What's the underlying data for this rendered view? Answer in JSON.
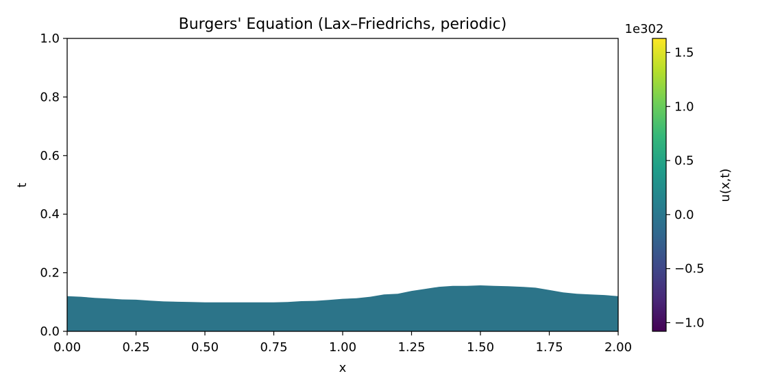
{
  "chart_data": {
    "type": "heatmap",
    "title": "Burgers' Equation (Lax–Friedrichs, periodic)",
    "xlabel": "x",
    "ylabel": "t",
    "xlim": [
      0.0,
      2.0
    ],
    "ylim": [
      0.0,
      1.0
    ],
    "x_ticks": [
      "0.00",
      "0.25",
      "0.50",
      "0.75",
      "1.00",
      "1.25",
      "1.50",
      "1.75",
      "2.00"
    ],
    "y_ticks": [
      "0.0",
      "0.2",
      "0.4",
      "0.6",
      "0.8",
      "1.0"
    ],
    "grid": false,
    "filled_region": {
      "description_value": 0.0,
      "x": [
        0.0,
        0.05,
        0.1,
        0.15,
        0.2,
        0.25,
        0.3,
        0.35,
        0.4,
        0.45,
        0.5,
        0.55,
        0.6,
        0.65,
        0.7,
        0.75,
        0.8,
        0.85,
        0.9,
        0.95,
        1.0,
        1.05,
        1.1,
        1.15,
        1.2,
        1.25,
        1.3,
        1.35,
        1.4,
        1.45,
        1.5,
        1.55,
        1.6,
        1.65,
        1.7,
        1.75,
        1.8,
        1.85,
        1.9,
        1.95,
        2.0
      ],
      "t_max": [
        0.12,
        0.118,
        0.114,
        0.112,
        0.109,
        0.108,
        0.105,
        0.102,
        0.101,
        0.1,
        0.099,
        0.099,
        0.099,
        0.099,
        0.099,
        0.099,
        0.1,
        0.103,
        0.104,
        0.107,
        0.111,
        0.113,
        0.118,
        0.126,
        0.128,
        0.138,
        0.145,
        0.152,
        0.155,
        0.155,
        0.157,
        0.155,
        0.154,
        0.152,
        0.149,
        0.141,
        0.133,
        0.128,
        0.126,
        0.124,
        0.12
      ],
      "color": "#2c7489"
    },
    "colorbar": {
      "label": "u(x,t)",
      "scale_label": "1e302",
      "range": [
        -1.08,
        1.63
      ],
      "ticks": [
        "−1.0",
        "−0.5",
        "0.0",
        "0.5",
        "1.0",
        "1.5"
      ],
      "tick_values": [
        -1.0,
        -0.5,
        0.0,
        0.5,
        1.0,
        1.5
      ],
      "colormap": "viridis",
      "colormap_stops": [
        "#440154",
        "#482878",
        "#3e4989",
        "#31688e",
        "#26828e",
        "#1f9e89",
        "#35b779",
        "#6ece58",
        "#b5de2b",
        "#fde725"
      ]
    }
  }
}
